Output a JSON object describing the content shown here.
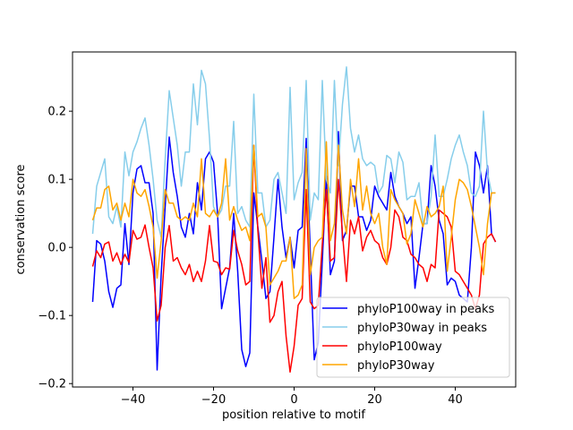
{
  "chart_data": {
    "type": "line",
    "title": "",
    "xlabel": "position relative to motif",
    "ylabel": "conservation score",
    "xlim": [
      -55,
      55
    ],
    "ylim": [
      -0.205,
      0.287
    ],
    "xticks": [
      -40,
      -20,
      0,
      20,
      40
    ],
    "xtick_labels": [
      "−40",
      "−20",
      "0",
      "20",
      "40"
    ],
    "yticks": [
      -0.2,
      -0.1,
      0.0,
      0.1,
      0.2
    ],
    "ytick_labels": [
      "−0.2",
      "−0.1",
      "0.0",
      "0.1",
      "0.2"
    ],
    "grid": false,
    "legend_position": "bottom-right",
    "x_start": -50,
    "x_step": 1,
    "series": [
      {
        "name": "phyloP100way in peaks",
        "color": "#0000ff",
        "values": [
          -0.08,
          0.01,
          0.005,
          -0.02,
          -0.065,
          -0.088,
          -0.06,
          -0.055,
          0.035,
          -0.025,
          0.08,
          0.115,
          0.12,
          0.095,
          0.095,
          0.05,
          -0.18,
          -0.04,
          0.06,
          0.162,
          0.11,
          0.075,
          0.03,
          0.015,
          0.05,
          0.02,
          0.095,
          0.055,
          0.13,
          0.14,
          0.125,
          0.05,
          -0.09,
          -0.06,
          -0.03,
          0.05,
          -0.035,
          -0.15,
          -0.175,
          -0.155,
          0.08,
          0.03,
          -0.02,
          -0.075,
          -0.065,
          0.015,
          0.1,
          0.03,
          -0.015,
          0.015,
          -0.03,
          0.025,
          0.03,
          0.16,
          -0.005,
          -0.165,
          -0.14,
          -0.02,
          0.105,
          -0.04,
          -0.02,
          0.17,
          0.01,
          0.025,
          0.09,
          0.09,
          0.045,
          0.045,
          0.025,
          0.04,
          0.09,
          0.075,
          0.065,
          0.055,
          0.11,
          0.075,
          0.06,
          0.05,
          0.035,
          0.045,
          -0.06,
          -0.015,
          0.035,
          0.035,
          0.12,
          0.09,
          0.04,
          0.02,
          -0.055,
          -0.045,
          -0.05,
          -0.07,
          -0.075,
          -0.08,
          0.0,
          0.14,
          0.12,
          0.08,
          0.12,
          0.02,
          0.008
        ]
      },
      {
        "name": "phyloP30way in peaks",
        "color": "#87ceeb",
        "values": [
          0.02,
          0.09,
          0.11,
          0.13,
          0.045,
          0.035,
          0.06,
          0.03,
          0.14,
          0.105,
          0.14,
          0.155,
          0.175,
          0.19,
          0.15,
          0.1,
          0.04,
          0.015,
          0.13,
          0.23,
          0.19,
          0.15,
          0.09,
          0.14,
          0.14,
          0.24,
          0.18,
          0.26,
          0.24,
          0.16,
          0.06,
          0.045,
          0.055,
          0.09,
          0.09,
          0.185,
          0.05,
          0.06,
          0.04,
          0.03,
          0.225,
          0.08,
          0.08,
          0.03,
          0.04,
          0.1,
          0.11,
          0.08,
          0.05,
          0.235,
          0.07,
          0.095,
          0.11,
          0.245,
          0.04,
          0.08,
          0.07,
          0.245,
          0.1,
          0.08,
          0.245,
          0.12,
          0.21,
          0.265,
          0.175,
          0.14,
          0.165,
          0.13,
          0.12,
          0.125,
          0.12,
          0.08,
          0.09,
          0.135,
          0.13,
          0.095,
          0.14,
          0.125,
          0.07,
          0.075,
          0.075,
          0.095,
          0.035,
          0.035,
          0.075,
          0.165,
          0.075,
          0.075,
          0.1,
          0.13,
          0.15,
          0.165,
          0.14,
          0.12,
          0.08,
          0.075,
          0.09,
          0.2,
          0.11,
          0.08,
          0.08
        ]
      },
      {
        "name": "phyloP100way",
        "color": "#ff0000",
        "values": [
          -0.028,
          -0.005,
          -0.015,
          0.005,
          0.008,
          -0.02,
          -0.008,
          -0.025,
          -0.01,
          -0.022,
          0.025,
          0.012,
          0.015,
          0.033,
          0.0,
          -0.03,
          -0.108,
          -0.085,
          0.0,
          0.032,
          -0.02,
          -0.015,
          -0.03,
          -0.04,
          -0.025,
          -0.05,
          -0.035,
          -0.05,
          -0.02,
          0.032,
          -0.02,
          -0.022,
          -0.04,
          -0.03,
          -0.032,
          0.025,
          -0.005,
          -0.025,
          -0.055,
          -0.05,
          0.15,
          0.025,
          -0.06,
          -0.015,
          -0.11,
          -0.1,
          -0.065,
          -0.05,
          -0.13,
          -0.183,
          -0.145,
          -0.085,
          -0.075,
          0.085,
          -0.08,
          -0.09,
          -0.085,
          0.005,
          0.085,
          -0.02,
          -0.015,
          0.1,
          0.02,
          -0.05,
          0.04,
          0.02,
          0.045,
          -0.005,
          0.015,
          0.025,
          0.01,
          0.005,
          -0.015,
          -0.025,
          0.0,
          0.055,
          0.045,
          0.015,
          0.01,
          -0.01,
          -0.015,
          -0.025,
          -0.03,
          -0.05,
          -0.025,
          -0.03,
          0.055,
          0.05,
          0.045,
          0.03,
          -0.035,
          -0.04,
          -0.05,
          -0.06,
          -0.07,
          -0.09,
          -0.07,
          0.005,
          0.015,
          0.02,
          0.008
        ]
      },
      {
        "name": "phyloP30way",
        "color": "#ffa500",
        "values": [
          0.04,
          0.058,
          0.058,
          0.085,
          0.09,
          0.055,
          0.065,
          0.04,
          0.065,
          0.045,
          0.1,
          0.08,
          0.075,
          0.085,
          0.06,
          0.03,
          -0.045,
          0.01,
          0.085,
          0.065,
          0.065,
          0.045,
          0.04,
          0.045,
          0.04,
          0.065,
          0.045,
          0.13,
          0.05,
          0.045,
          0.055,
          0.045,
          0.065,
          0.13,
          0.04,
          0.06,
          0.04,
          0.025,
          0.03,
          0.01,
          0.15,
          0.045,
          0.05,
          0.03,
          -0.055,
          -0.045,
          -0.035,
          -0.02,
          -0.02,
          0.015,
          -0.075,
          -0.07,
          -0.055,
          0.145,
          -0.04,
          0.0,
          0.01,
          0.015,
          0.155,
          0.01,
          0.035,
          0.15,
          0.055,
          0.02,
          0.1,
          0.06,
          0.13,
          0.055,
          0.09,
          0.05,
          0.035,
          0.05,
          0.0,
          -0.025,
          0.085,
          0.07,
          0.06,
          0.05,
          0.005,
          0.02,
          0.07,
          0.05,
          0.03,
          0.06,
          0.045,
          0.05,
          0.06,
          0.09,
          -0.035,
          0.015,
          0.07,
          0.1,
          0.095,
          0.085,
          0.06,
          0.03,
          0.0,
          -0.04,
          0.035,
          0.08,
          0.08
        ]
      }
    ]
  }
}
